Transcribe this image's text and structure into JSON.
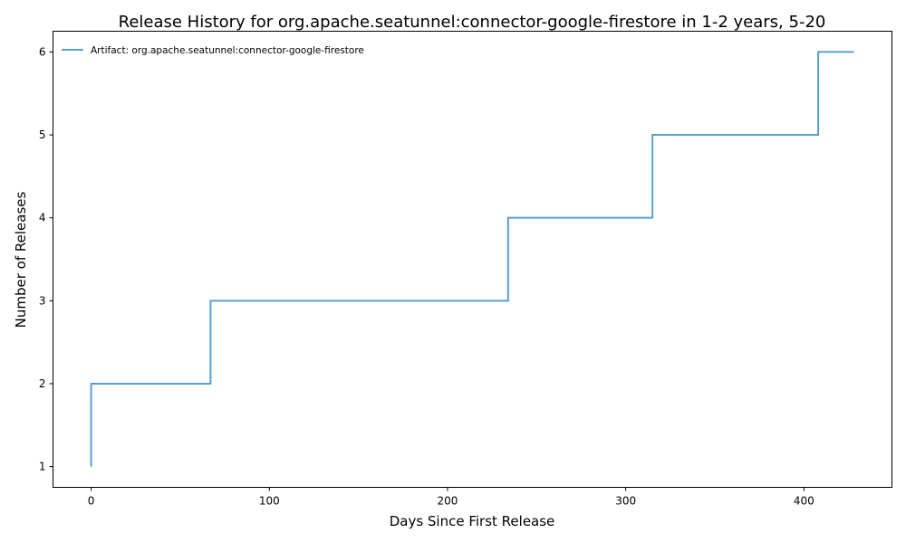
{
  "chart_data": {
    "type": "line",
    "step": "post",
    "title": "Release History for org.apache.seatunnel:connector-google-firestore in 1-2 years, 5-20",
    "xlabel": "Days Since First Release",
    "ylabel": "Number of Releases",
    "xlim": [
      -21.4,
      449.4
    ],
    "ylim": [
      0.75,
      6.25
    ],
    "xticks": [
      0,
      100,
      200,
      300,
      400
    ],
    "yticks": [
      1,
      2,
      3,
      4,
      5,
      6
    ],
    "grid": false,
    "legend_position": "upper left",
    "series": [
      {
        "name": "Artifact: org.apache.seatunnel:connector-google-firestore",
        "color": "#5b9fd1",
        "x": [
          0,
          0,
          67,
          234,
          315,
          408,
          428
        ],
        "y": [
          1,
          2,
          3,
          4,
          5,
          6,
          6
        ]
      }
    ]
  }
}
